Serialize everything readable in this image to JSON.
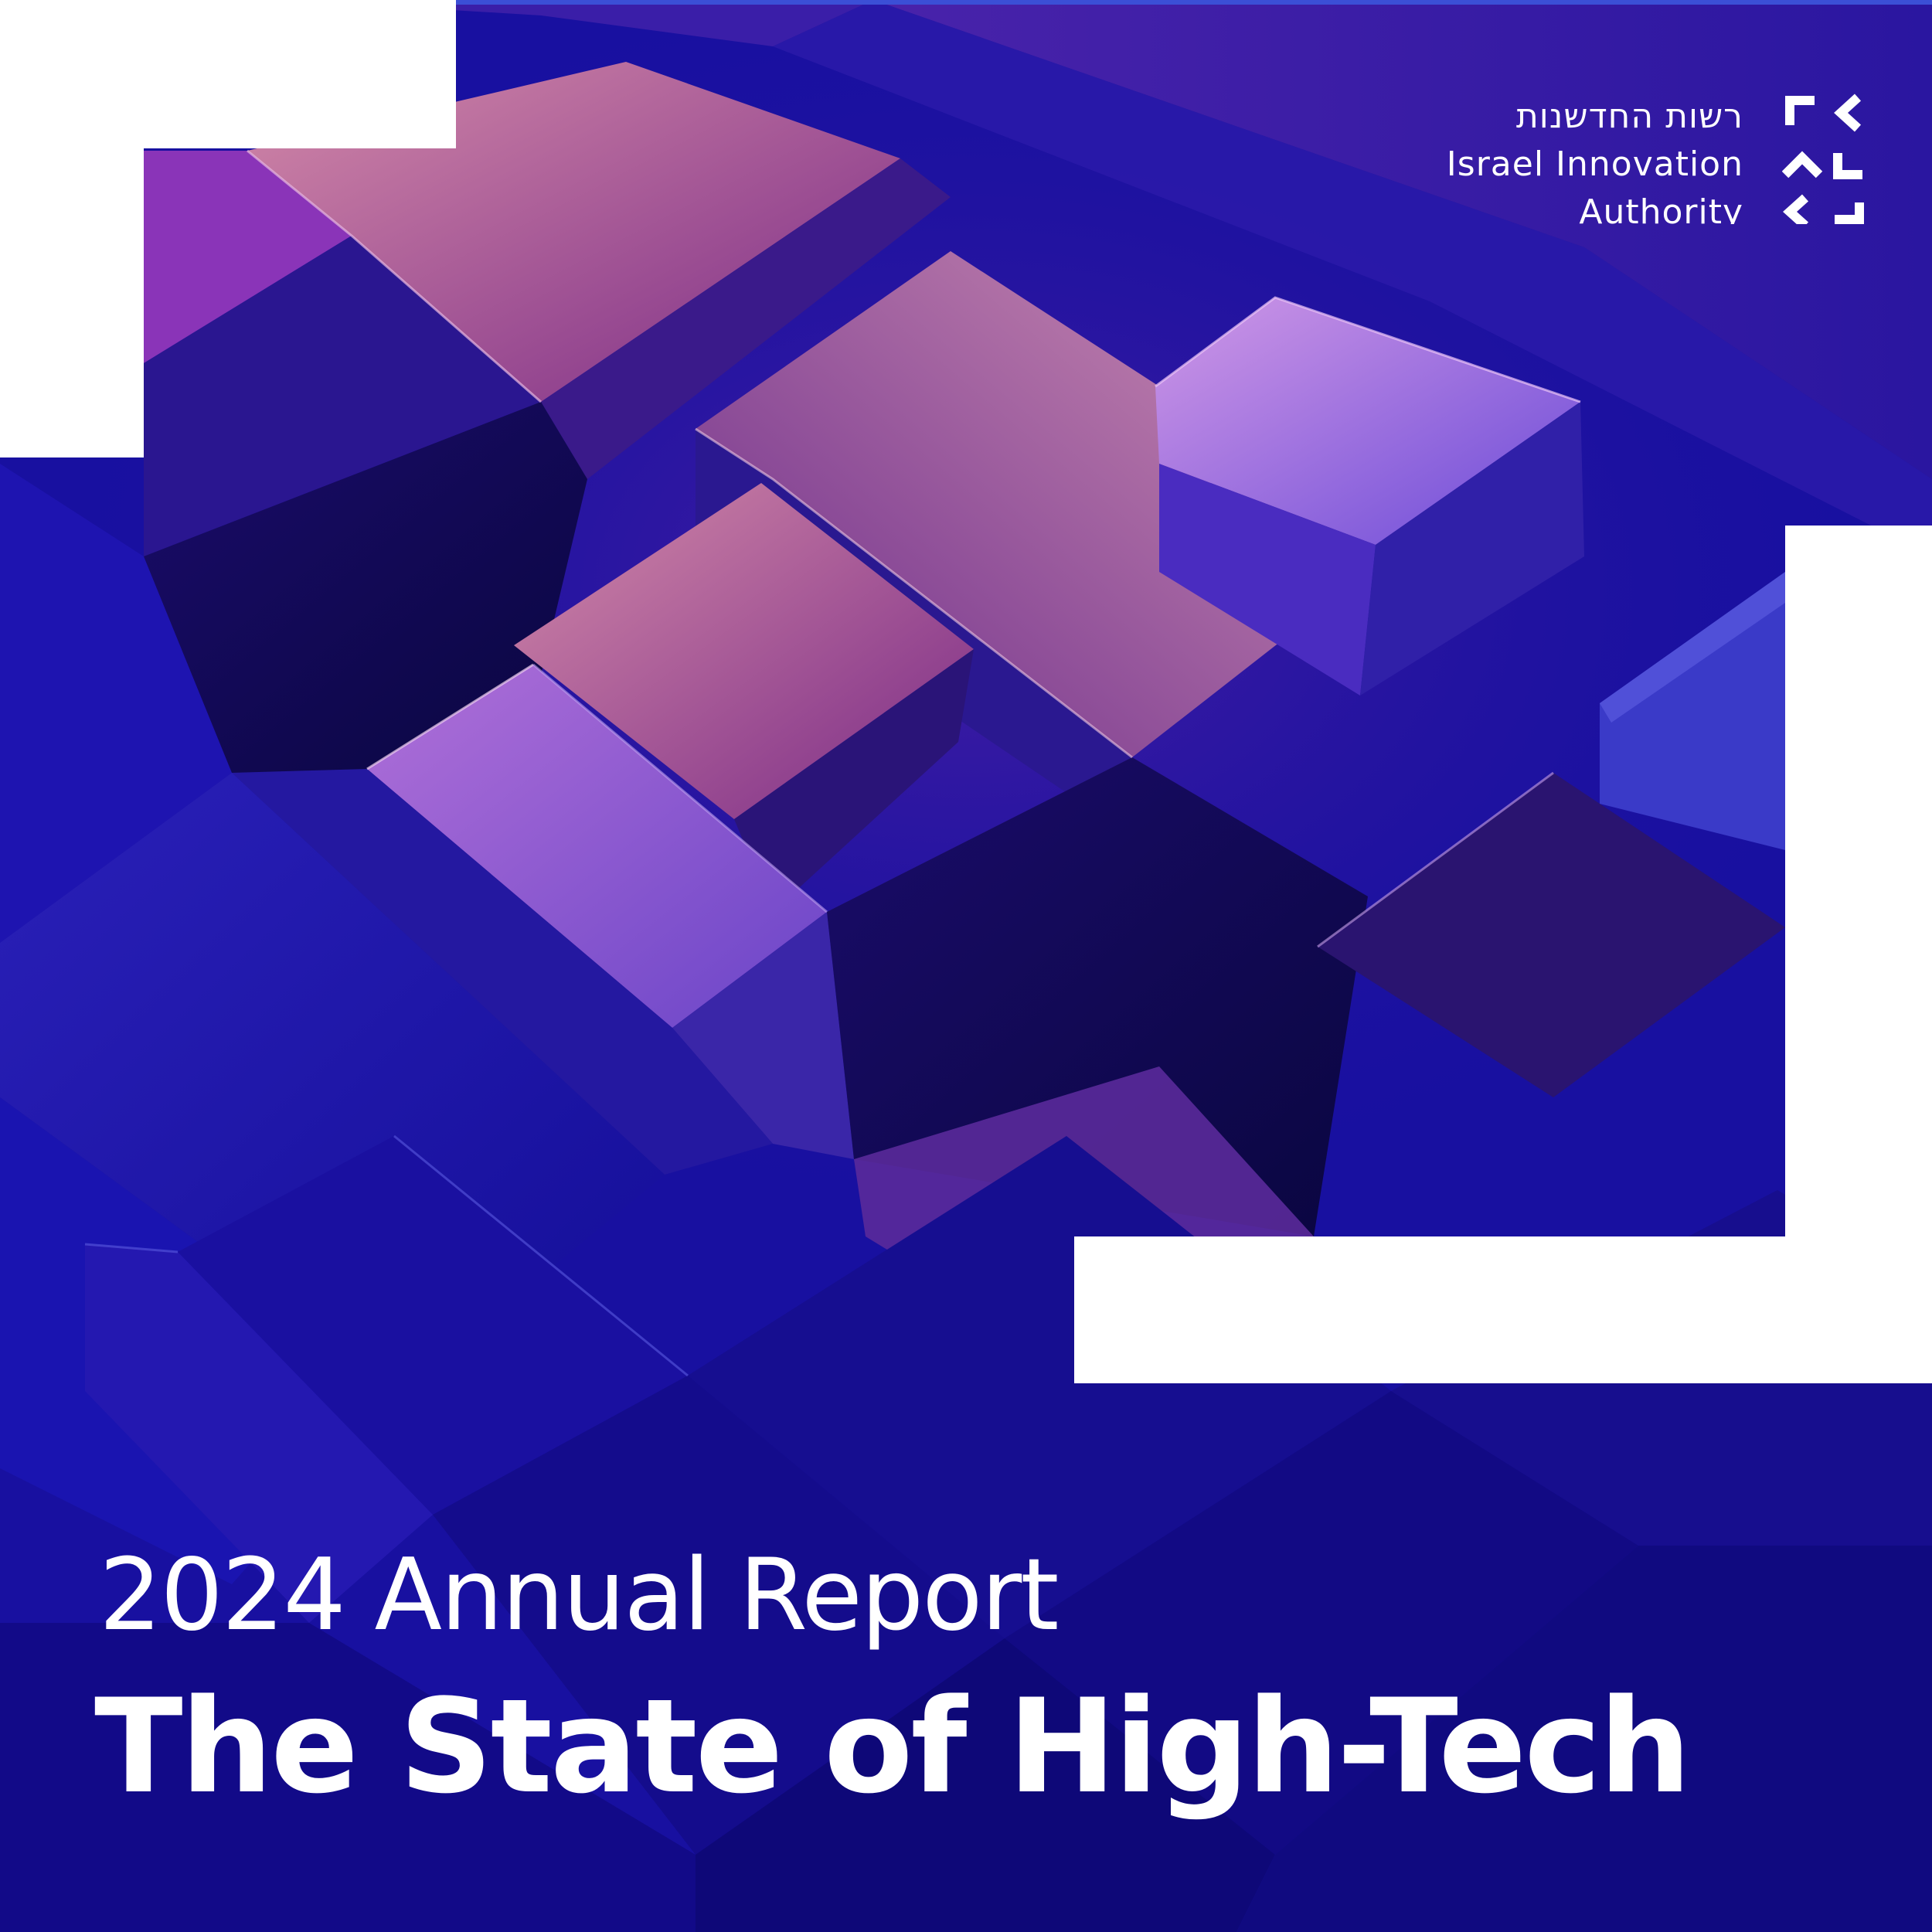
{
  "logo": {
    "hebrew_name": "רשות החדשנות",
    "english_name_line1": "Israel Innovation",
    "english_name_line2": "Authority",
    "icon": "iia-brackets-logo-icon"
  },
  "cover": {
    "subtitle": "2024 Annual Report",
    "title": "The State of High-Tech"
  },
  "colors": {
    "background": "#1a10a8",
    "accent_purple": "#9a4fd0",
    "accent_pink": "#c87aa6",
    "text": "#ffffff"
  }
}
